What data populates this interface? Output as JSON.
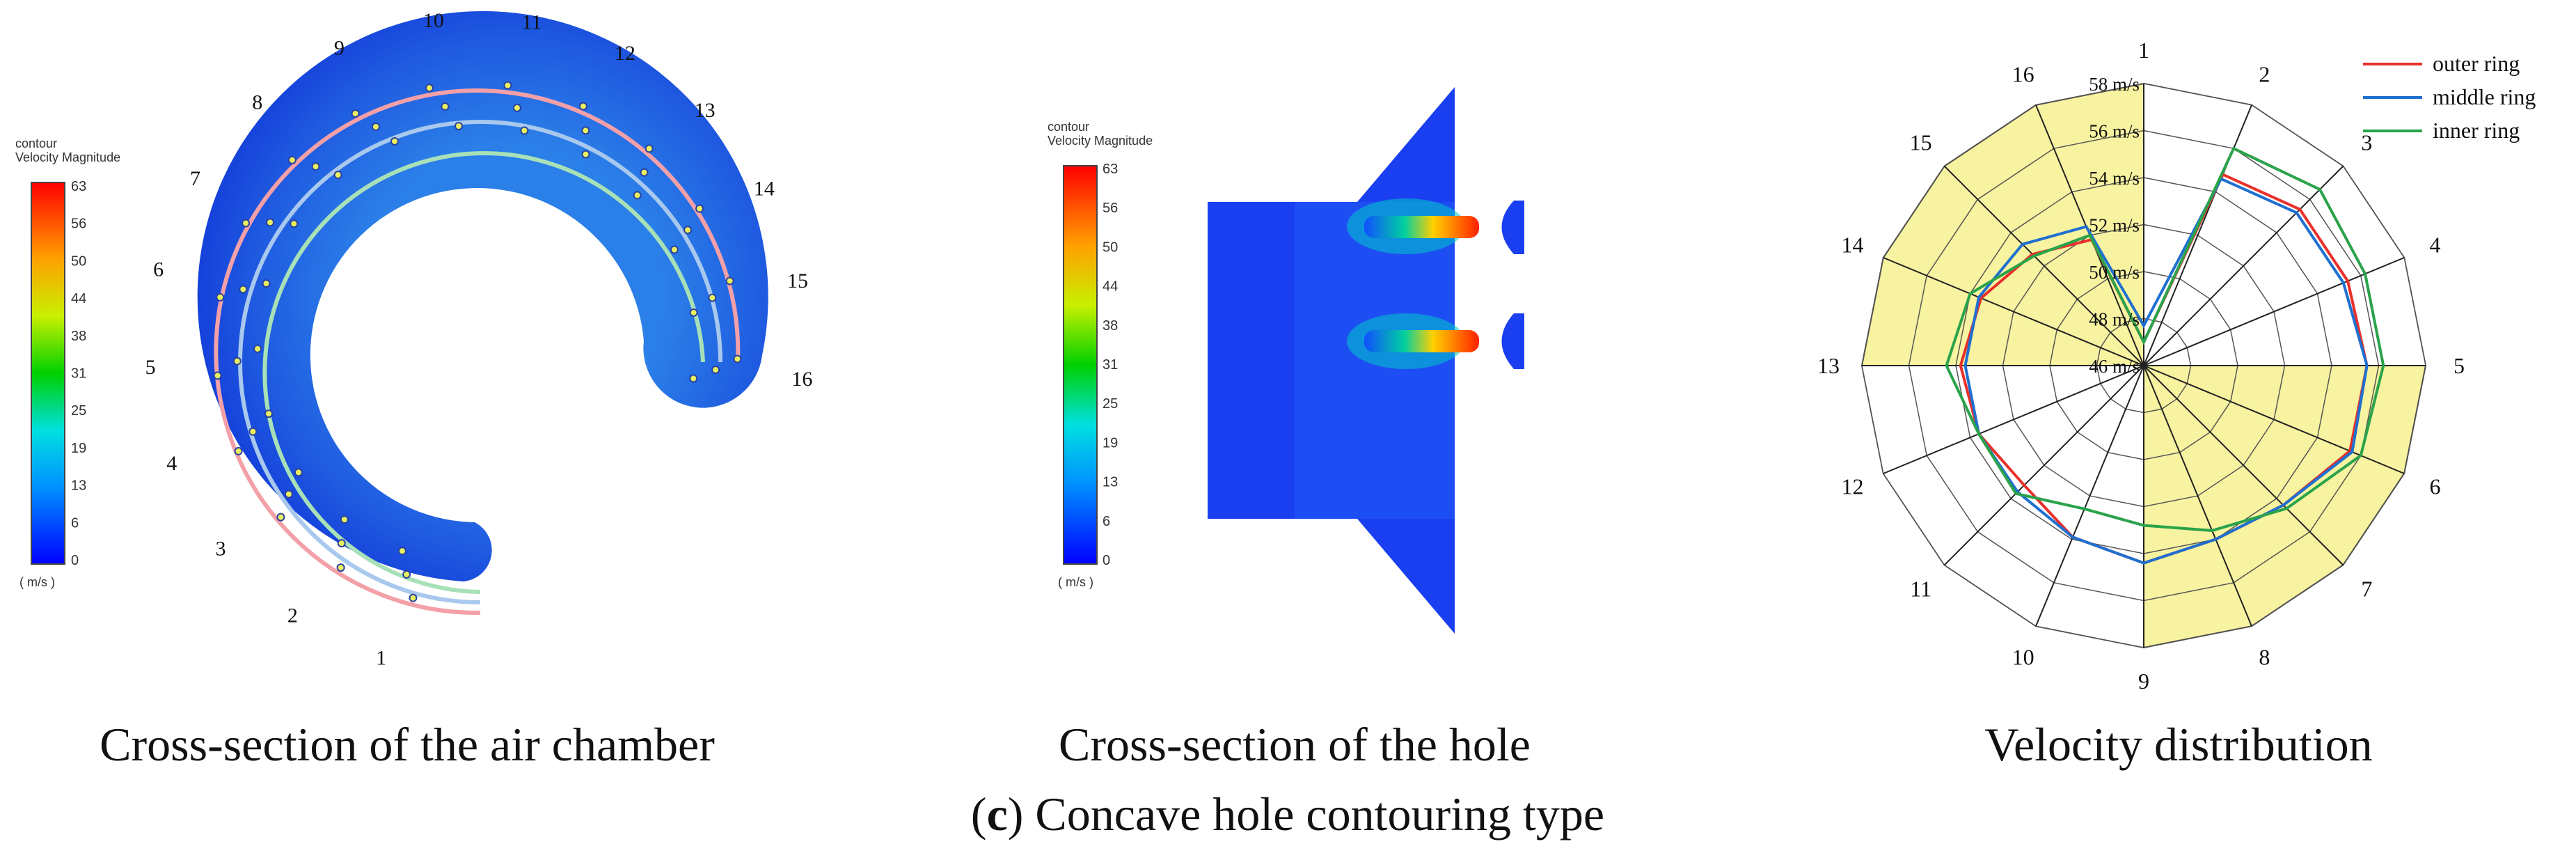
{
  "captions": {
    "left": "Cross-section of the air chamber",
    "middle": "Cross-section of the hole",
    "right": "Velocity distribution",
    "figure_prefix": "(",
    "figure_letter": "c",
    "figure_suffix": ") Concave hole contouring type"
  },
  "legend_left": {
    "title_line1": "contour",
    "title_line2": "Velocity Magnitude",
    "unit": "( m/s )",
    "ticks": [
      "63",
      "56",
      "50",
      "44",
      "38",
      "31",
      "25",
      "19",
      "13",
      "6",
      "0"
    ]
  },
  "legend_middle": {
    "title_line1": "contour",
    "title_line2": "Velocity Magnitude",
    "unit": "( m/s )",
    "ticks": [
      "63",
      "56",
      "50",
      "44",
      "38",
      "31",
      "25",
      "19",
      "13",
      "6",
      "0"
    ]
  },
  "chamber_labels": [
    "1",
    "2",
    "3",
    "4",
    "5",
    "6",
    "7",
    "8",
    "9",
    "10",
    "11",
    "12",
    "13",
    "14",
    "15",
    "16"
  ],
  "colors": {
    "outer": "#e8302a",
    "middle": "#1f6fd0",
    "inner": "#2aa34a",
    "radar_fill": "#f7f3a0"
  },
  "chart_data": {
    "type": "radar",
    "categories": [
      "1",
      "2",
      "3",
      "4",
      "5",
      "6",
      "7",
      "8",
      "9",
      "10",
      "11",
      "12",
      "13",
      "14",
      "15",
      "16"
    ],
    "r_ticks": [
      "46 m/s",
      "48 m/s",
      "50 m/s",
      "52 m/s",
      "54 m/s",
      "56 m/s",
      "58 m/s"
    ],
    "rlim": [
      46,
      58
    ],
    "series": [
      {
        "name": "outer ring",
        "values": [
          47.0,
          54.8,
          55.4,
          55.4,
          55.5,
          55.5,
          54.4,
          54.0,
          54.4,
          53.9,
          53.2,
          53.6,
          53.8,
          53.5,
          52.7,
          51.8
        ]
      },
      {
        "name": "middle ring",
        "values": [
          47.7,
          54.6,
          55.2,
          55.2,
          55.5,
          55.6,
          54.4,
          54.0,
          54.4,
          53.9,
          53.6,
          53.6,
          53.6,
          53.6,
          53.3,
          52.4
        ]
      },
      {
        "name": "inner ring",
        "values": [
          47.0,
          56.0,
          56.6,
          56.2,
          56.2,
          56.0,
          54.6,
          53.6,
          52.8,
          52.6,
          53.7,
          53.6,
          54.4,
          54.0,
          52.6,
          52.0
        ]
      }
    ],
    "legend_position": "top-right"
  }
}
